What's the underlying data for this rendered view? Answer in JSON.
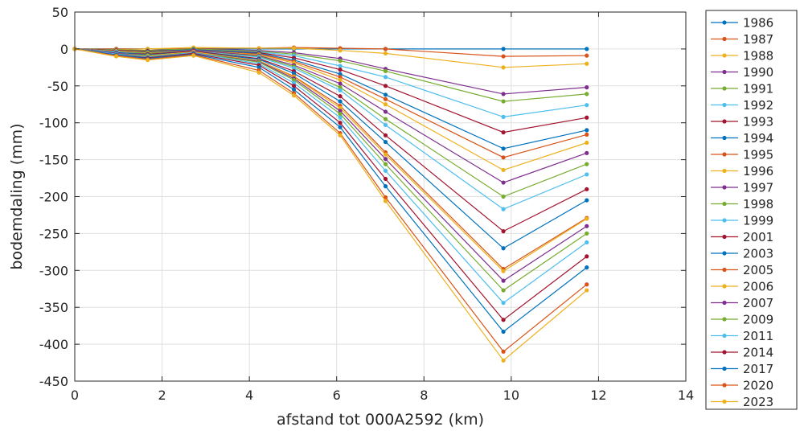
{
  "chart_data": {
    "type": "line",
    "title": "",
    "xlabel": "afstand tot 000A2592 (km)",
    "ylabel": "bodemdaling (mm)",
    "xlim": [
      0,
      14
    ],
    "ylim": [
      -450,
      50
    ],
    "xticks": [
      0,
      2,
      4,
      6,
      8,
      10,
      12,
      14
    ],
    "yticks": [
      50,
      0,
      -50,
      -100,
      -150,
      -200,
      -250,
      -300,
      -350,
      -400,
      -450
    ],
    "grid": true,
    "legend_position": "outside-right",
    "x": [
      0,
      0.95,
      1.67,
      2.72,
      4.22,
      5.02,
      6.08,
      7.12,
      9.82,
      11.73
    ],
    "series": [
      {
        "name": "1986",
        "color": "#0072bd",
        "values": [
          0,
          0,
          0,
          0,
          0,
          0,
          0,
          0,
          0,
          0
        ]
      },
      {
        "name": "1987",
        "color": "#d95319",
        "values": [
          0,
          0,
          0,
          1,
          1,
          2,
          1,
          0,
          -10,
          -9
        ]
      },
      {
        "name": "1988",
        "color": "#edb120",
        "values": [
          0,
          -1,
          0,
          2,
          1,
          1,
          -2,
          -6,
          -25,
          -20
        ]
      },
      {
        "name": "1990",
        "color": "#7e2f8e",
        "values": [
          0,
          -1,
          -2,
          0,
          -2,
          -5,
          -13,
          -27,
          -61,
          -52
        ]
      },
      {
        "name": "1991",
        "color": "#77ac30",
        "values": [
          0,
          -1,
          -2,
          0,
          -3,
          -7,
          -16,
          -30,
          -71,
          -61
        ]
      },
      {
        "name": "1992",
        "color": "#4dbeee",
        "values": [
          0,
          -2,
          -3,
          -1,
          -4,
          -9,
          -23,
          -38,
          -92,
          -76
        ]
      },
      {
        "name": "1993",
        "color": "#a2142f",
        "values": [
          0,
          -2,
          -3,
          -1,
          -5,
          -12,
          -28,
          -50,
          -113,
          -93
        ]
      },
      {
        "name": "1994",
        "color": "#0072bd",
        "values": [
          0,
          -3,
          -4,
          -1,
          -6,
          -15,
          -34,
          -62,
          -135,
          -110
        ]
      },
      {
        "name": "1995",
        "color": "#d95319",
        "values": [
          0,
          -3,
          -5,
          -2,
          -7,
          -17,
          -38,
          -68,
          -147,
          -116
        ]
      },
      {
        "name": "1996",
        "color": "#edb120",
        "values": [
          0,
          -3,
          -5,
          -2,
          -8,
          -19,
          -42,
          -75,
          -164,
          -127
        ]
      },
      {
        "name": "1997",
        "color": "#7e2f8e",
        "values": [
          0,
          -4,
          -6,
          -2,
          -9,
          -22,
          -47,
          -85,
          -181,
          -141
        ]
      },
      {
        "name": "1998",
        "color": "#77ac30",
        "values": [
          0,
          -4,
          -6,
          -3,
          -10,
          -24,
          -52,
          -95,
          -200,
          -156
        ]
      },
      {
        "name": "1999",
        "color": "#4dbeee",
        "values": [
          0,
          -4,
          -7,
          -3,
          -11,
          -26,
          -56,
          -103,
          -217,
          -170
        ]
      },
      {
        "name": "2001",
        "color": "#a2142f",
        "values": [
          0,
          -5,
          -7,
          -3,
          -13,
          -30,
          -64,
          -117,
          -247,
          -190
        ]
      },
      {
        "name": "2003",
        "color": "#0072bd",
        "values": [
          0,
          -5,
          -8,
          -4,
          -14,
          -33,
          -71,
          -126,
          -270,
          -205
        ]
      },
      {
        "name": "2005",
        "color": "#d95319",
        "values": [
          0,
          -6,
          -9,
          -4,
          -16,
          -37,
          -77,
          -140,
          -298,
          -229
        ]
      },
      {
        "name": "2006",
        "color": "#edb120",
        "values": [
          0,
          -6,
          -9,
          -4,
          -16,
          -38,
          -80,
          -143,
          -301,
          -230
        ]
      },
      {
        "name": "2007",
        "color": "#7e2f8e",
        "values": [
          0,
          -6,
          -10,
          -5,
          -17,
          -40,
          -84,
          -149,
          -314,
          -240
        ]
      },
      {
        "name": "2009",
        "color": "#77ac30",
        "values": [
          0,
          -7,
          -10,
          -5,
          -18,
          -42,
          -88,
          -156,
          -327,
          -250
        ]
      },
      {
        "name": "2011",
        "color": "#4dbeee",
        "values": [
          0,
          -7,
          -11,
          -5,
          -20,
          -46,
          -93,
          -165,
          -344,
          -262
        ]
      },
      {
        "name": "2014",
        "color": "#a2142f",
        "values": [
          0,
          -8,
          -12,
          -6,
          -22,
          -50,
          -100,
          -176,
          -367,
          -281
        ]
      },
      {
        "name": "2017",
        "color": "#0072bd",
        "values": [
          0,
          -8,
          -13,
          -7,
          -25,
          -55,
          -106,
          -186,
          -383,
          -296
        ]
      },
      {
        "name": "2020",
        "color": "#d95319",
        "values": [
          0,
          -9,
          -14,
          -8,
          -29,
          -60,
          -114,
          -201,
          -410,
          -319
        ]
      },
      {
        "name": "2023",
        "color": "#edb120",
        "values": [
          0,
          -10,
          -15,
          -9,
          -32,
          -63,
          -117,
          -206,
          -422,
          -327
        ]
      }
    ]
  }
}
